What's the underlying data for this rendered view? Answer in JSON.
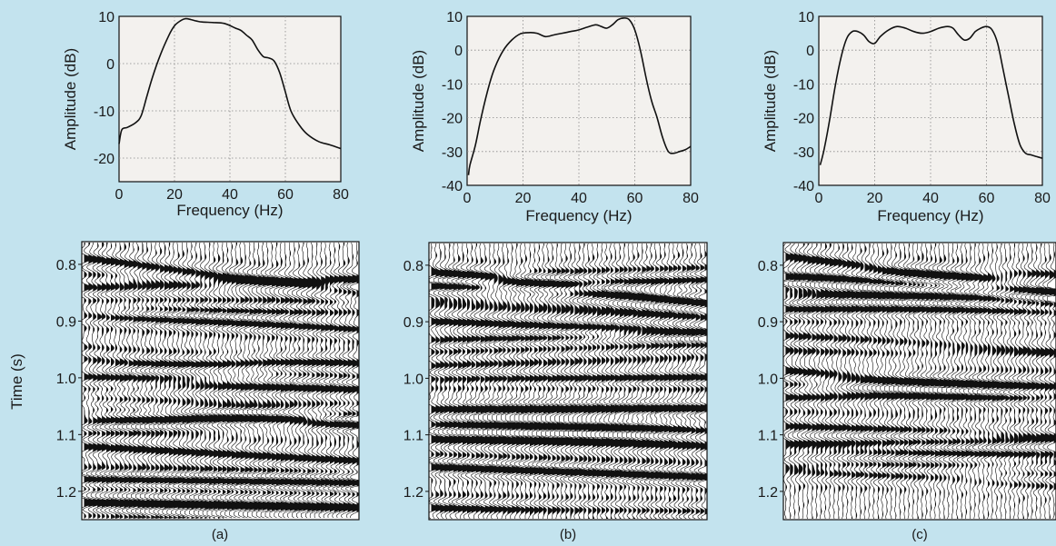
{
  "background_color": "#c3e3ee",
  "plot_bg_color": "#f3f1ee",
  "line_color": "#111111",
  "chart_data": [
    {
      "type": "line",
      "panel": "a",
      "xlabel": "Frequency (Hz)",
      "ylabel": "Amplitude (dB)",
      "xlim": [
        0,
        80
      ],
      "ylim": [
        -25,
        10
      ],
      "xticks": [
        0,
        20,
        40,
        60,
        80
      ],
      "yticks": [
        10,
        0,
        -10,
        -20
      ],
      "grid": true,
      "series": [
        {
          "x": [
            0,
            1,
            3,
            6,
            8,
            10,
            12,
            15,
            18,
            20,
            22,
            24,
            26,
            28,
            30,
            34,
            38,
            42,
            44,
            46,
            48,
            50,
            52,
            54,
            56,
            58,
            60,
            62,
            65,
            68,
            72,
            76,
            80
          ],
          "y": [
            -17,
            -14,
            -13.5,
            -12.5,
            -11,
            -7,
            -3,
            2,
            6,
            8,
            9,
            9.5,
            9.3,
            9,
            8.8,
            8.7,
            8.5,
            7.5,
            7,
            6,
            5,
            3,
            1.5,
            1.2,
            0.5,
            -2,
            -6,
            -10,
            -13,
            -15,
            -16.5,
            -17.2,
            -18
          ]
        }
      ]
    },
    {
      "type": "line",
      "panel": "b",
      "xlabel": "Frequency (Hz)",
      "ylabel": "Amplitude (dB)",
      "xlim": [
        0,
        80
      ],
      "ylim": [
        -40,
        10
      ],
      "xticks": [
        0,
        20,
        40,
        60,
        80
      ],
      "yticks": [
        10,
        0,
        -10,
        -20,
        -30,
        -40
      ],
      "grid": true,
      "series": [
        {
          "x": [
            0.5,
            1,
            3,
            5,
            8,
            10,
            13,
            16,
            19,
            22,
            25,
            28,
            31,
            34,
            37,
            40,
            43,
            46,
            48,
            50,
            52,
            54,
            56,
            58,
            60,
            62,
            64,
            66,
            68,
            70,
            72,
            74,
            76,
            78,
            80
          ],
          "y": [
            -37,
            -34,
            -28,
            -20,
            -10,
            -5,
            0,
            3,
            4.8,
            5.2,
            5,
            4,
            4.5,
            5,
            5.5,
            6,
            6.8,
            7.5,
            7,
            6.5,
            7.5,
            9,
            9.5,
            9,
            6,
            0,
            -8,
            -15,
            -20,
            -26,
            -30,
            -30.5,
            -30,
            -29.5,
            -28.5
          ]
        }
      ]
    },
    {
      "type": "line",
      "panel": "c",
      "xlabel": "Frequency (Hz)",
      "ylabel": "Amplitude (dB)",
      "xlim": [
        0,
        80
      ],
      "ylim": [
        -40,
        10
      ],
      "xticks": [
        0,
        20,
        40,
        60,
        80
      ],
      "yticks": [
        10,
        0,
        -10,
        -20,
        -30,
        -40
      ],
      "grid": true,
      "series": [
        {
          "x": [
            0.5,
            2,
            4,
            6,
            8,
            10,
            12,
            14,
            16,
            18,
            20,
            22,
            25,
            28,
            31,
            34,
            37,
            40,
            43,
            46,
            48,
            50,
            52,
            54,
            56,
            58,
            60,
            62,
            64,
            66,
            68,
            70,
            72,
            74,
            76,
            78,
            80
          ],
          "y": [
            -34,
            -29,
            -20,
            -10,
            -2,
            3.5,
            5.5,
            5.5,
            4.5,
            2.5,
            2,
            4,
            6,
            7,
            6.5,
            5.5,
            5,
            5.5,
            6.5,
            7,
            6.5,
            4.5,
            3,
            3.5,
            5.5,
            6.5,
            7,
            6,
            2,
            -6,
            -14,
            -22,
            -28,
            -30.5,
            -31,
            -31.5,
            -32
          ]
        }
      ]
    },
    {
      "type": "heatmap",
      "subtype": "seismic-wiggle-section",
      "panel": "a",
      "ylabel": "Time (s)",
      "ylim": [
        0.76,
        1.25
      ],
      "yticks": [
        0.8,
        0.9,
        1.0,
        1.1,
        1.2
      ],
      "ytick_labels": [
        "0.8",
        "0.9",
        "1.0",
        "1.1",
        "1.2"
      ],
      "caption": "(a)"
    },
    {
      "type": "heatmap",
      "subtype": "seismic-wiggle-section",
      "panel": "b",
      "ylim": [
        0.76,
        1.25
      ],
      "yticks": [
        0.8,
        0.9,
        1.0,
        1.1,
        1.2
      ],
      "ytick_labels": [
        "0.8",
        "0.9",
        "1.0",
        "1.1",
        "1.2"
      ],
      "caption": "(b)"
    },
    {
      "type": "heatmap",
      "subtype": "seismic-wiggle-section",
      "panel": "c",
      "ylim": [
        0.76,
        1.25
      ],
      "yticks": [
        0.8,
        0.9,
        1.0,
        1.1,
        1.2
      ],
      "ytick_labels": [
        "0.8",
        "0.9",
        "1.0",
        "1.1",
        "1.2"
      ],
      "caption": "(c)"
    }
  ]
}
